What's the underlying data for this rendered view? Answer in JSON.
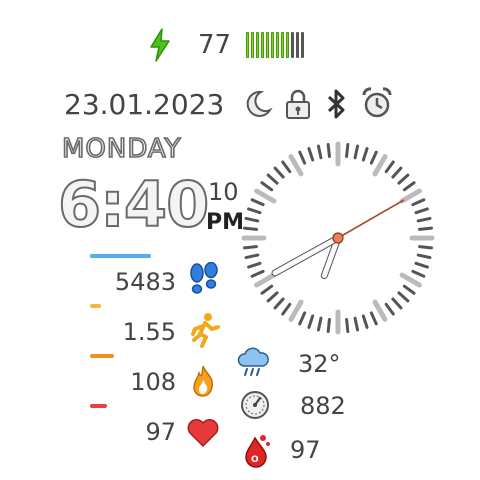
{
  "status": {
    "battery_percent": "77",
    "battery_level": 0.77,
    "battery_segments": 12,
    "battery_colors": {
      "on": "#7ed321",
      "off": "#555555"
    }
  },
  "date": {
    "full": "23.01.2023",
    "weekday": "MONDAY"
  },
  "status_icons": [
    "moon-icon",
    "lock-icon",
    "bluetooth-icon",
    "alarm-icon"
  ],
  "time": {
    "hours_minutes": "6:40",
    "seconds": "10",
    "ampm": "PM"
  },
  "analog_clock": {
    "hour": 6,
    "minute": 40,
    "second": 10
  },
  "metrics": {
    "steps": {
      "value": "5483",
      "icon": "footprints-icon",
      "color": "#4fb0f0",
      "progress": 0.55
    },
    "distance": {
      "value": "1.55",
      "icon": "runner-icon",
      "color": "#f5b83d",
      "progress": 0.1
    },
    "calories": {
      "value": "108",
      "icon": "flame-icon",
      "color": "#f0901e",
      "progress": 0.22
    },
    "heart_rate": {
      "value": "97",
      "icon": "heart-icon",
      "color": "#e84040",
      "progress": 0.15
    }
  },
  "weather": {
    "temperature": "32°",
    "icon": "cloud-rain-icon"
  },
  "pressure": {
    "value": "882",
    "icon": "gauge-icon"
  },
  "spo2": {
    "value": "97",
    "icon": "blood-drop-icon"
  }
}
